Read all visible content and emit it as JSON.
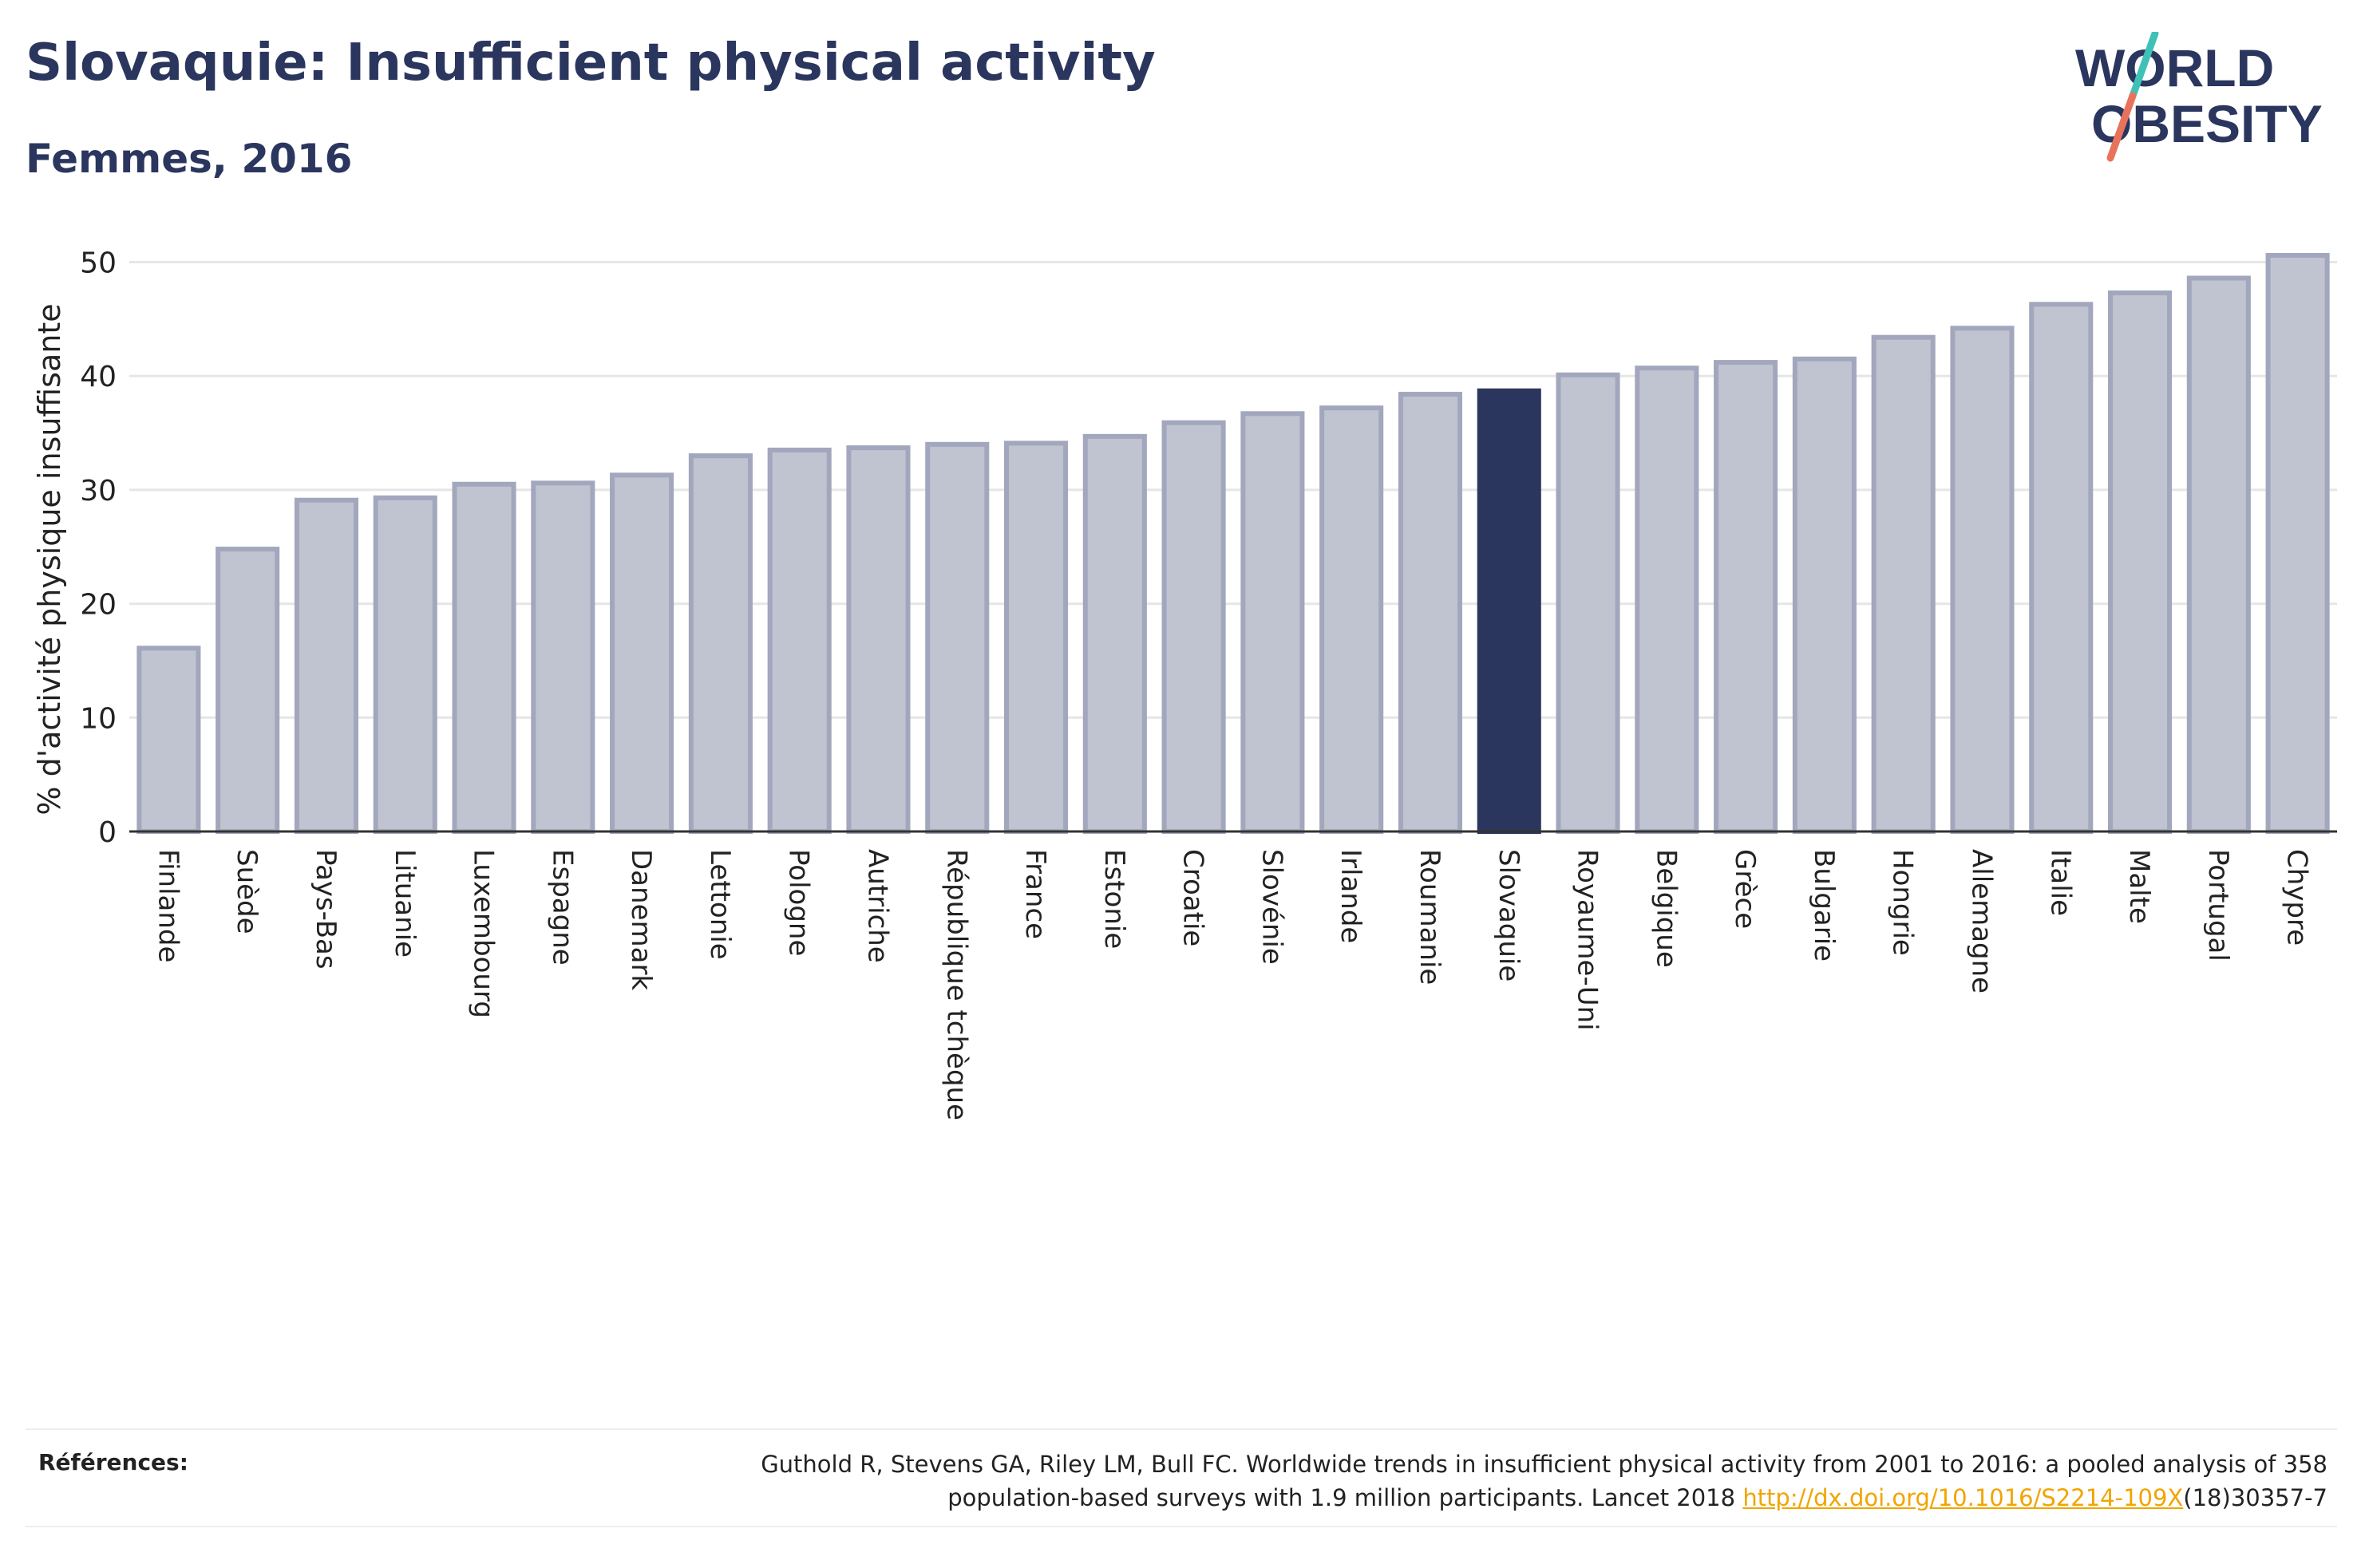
{
  "title": "Slovaquie: Insufficient physical activity",
  "subtitle": "Femmes, 2016",
  "logo": {
    "line1": "WORLD",
    "line2": "OBESITY"
  },
  "colors": {
    "bar": "#c0c3d0",
    "bar_border": "#a2a7bd",
    "highlight": "#2b365e",
    "text": "#222222",
    "grid": "#e6e6e6",
    "logo_slash_top": "#3fc1b8",
    "logo_slash_bottom": "#e8735d"
  },
  "chart_data": {
    "type": "bar",
    "ylabel": "% d'activité physique insuffisante",
    "ylim": [
      0,
      52
    ],
    "yticks": [
      0,
      10,
      20,
      30,
      40,
      50
    ],
    "highlight": "Slovaquie",
    "categories": [
      "Finlande",
      "Suède",
      "Pays-Bas",
      "Lituanie",
      "Luxembourg",
      "Espagne",
      "Danemark",
      "Lettonie",
      "Pologne",
      "Autriche",
      "République tchèque",
      "France",
      "Estonie",
      "Croatie",
      "Slovénie",
      "Irlande",
      "Roumanie",
      "Slovaquie",
      "Royaume-Uni",
      "Belgique",
      "Grèce",
      "Bulgarie",
      "Hongrie",
      "Allemagne",
      "Italie",
      "Malte",
      "Portugal",
      "Chypre"
    ],
    "values": [
      16.1,
      24.8,
      29.1,
      29.3,
      30.5,
      30.6,
      31.3,
      33.0,
      33.5,
      33.7,
      34.0,
      34.1,
      34.7,
      35.9,
      36.7,
      37.2,
      38.4,
      38.7,
      40.1,
      40.7,
      41.2,
      41.5,
      43.4,
      44.2,
      46.3,
      47.3,
      48.6,
      50.6
    ]
  },
  "references": {
    "label": "Références:",
    "line1": "Guthold R, Stevens GA, Riley LM, Bull FC. Worldwide trends in insufficient physical activity from 2001 to 2016: a pooled analysis of 358",
    "line2_pre": "population-based surveys with 1.9 million participants. Lancet 2018 ",
    "link": "http://dx.doi.org/10.1016/S2214-109X",
    "line2_post": "(18)30357-7"
  }
}
